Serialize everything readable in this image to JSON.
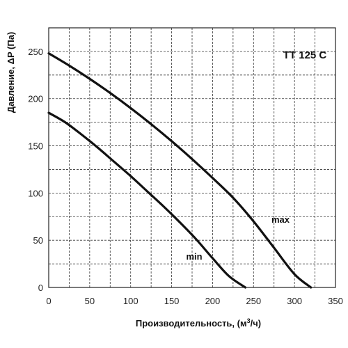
{
  "chart_data": {
    "type": "line",
    "title": "TT 125 C",
    "xlabel": "Производительность, (м",
    "xlabel_sup": "3",
    "xlabel_tail": "/ч)",
    "ylabel": "Давление, ΔP (Па)",
    "xlim": [
      0,
      350
    ],
    "ylim": [
      0,
      275
    ],
    "x_ticks": [
      0,
      50,
      100,
      150,
      200,
      250,
      300,
      350
    ],
    "y_ticks": [
      0,
      50,
      100,
      150,
      200,
      250
    ],
    "grid": true,
    "series": [
      {
        "name": "max",
        "x": [
          0,
          25,
          50,
          75,
          100,
          125,
          150,
          175,
          200,
          225,
          250,
          275,
          300,
          320
        ],
        "y": [
          248,
          235,
          221,
          206,
          190,
          173,
          155,
          136,
          116,
          95,
          70,
          42,
          14,
          0
        ]
      },
      {
        "name": "min",
        "x": [
          0,
          20,
          40,
          60,
          80,
          100,
          120,
          140,
          160,
          180,
          200,
          220,
          240
        ],
        "y": [
          185,
          175,
          162,
          148,
          133,
          118,
          102,
          86,
          69,
          51,
          31,
          12,
          0
        ]
      }
    ]
  },
  "colors": {
    "curve": "#111111",
    "grid": "#333333",
    "background": "#ffffff"
  }
}
